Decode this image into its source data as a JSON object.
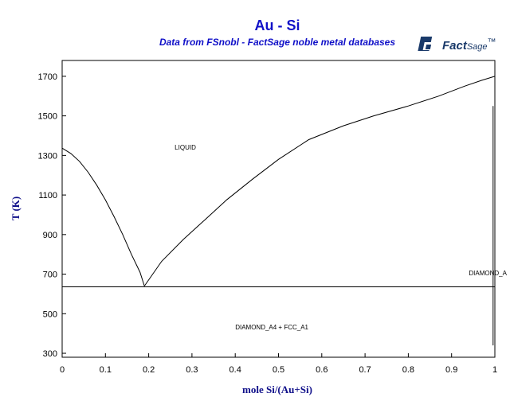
{
  "brand": {
    "logo_text": "Fact",
    "logo_suffix": "Sage",
    "logo_tm": "™",
    "logo_color": "#1a3a6a"
  },
  "chart_data": {
    "type": "line",
    "title": "Au - Si",
    "subtitle": "Data from FSnobl - FactSage noble metal databases",
    "xlabel": "mole Si/(Au+Si)",
    "ylabel": "T (K)",
    "xlim": [
      0,
      1
    ],
    "ylim": [
      280,
      1780
    ],
    "x_ticks": [
      "0",
      "0.1",
      "0.2",
      "0.3",
      "0.4",
      "0.5",
      "0.6",
      "0.7",
      "0.8",
      "0.9",
      "1"
    ],
    "x_tick_values": [
      0,
      0.1,
      0.2,
      0.3,
      0.4,
      0.5,
      0.6,
      0.7,
      0.8,
      0.9,
      1
    ],
    "y_ticks": [
      "300",
      "500",
      "700",
      "900",
      "1100",
      "1300",
      "1500",
      "1700"
    ],
    "y_tick_values": [
      300,
      500,
      700,
      900,
      1100,
      1300,
      1500,
      1700
    ],
    "grid": false,
    "colors": {
      "title": "#1010c8",
      "axis_label": "#10108a",
      "lines": "#000000"
    },
    "series": [
      {
        "x": [
          0,
          0.02,
          0.04,
          0.06,
          0.08,
          0.1,
          0.12,
          0.14,
          0.16,
          0.18,
          0.19
        ],
        "y": [
          1337,
          1310,
          1270,
          1215,
          1150,
          1075,
          990,
          900,
          800,
          710,
          640
        ]
      },
      {
        "x": [
          0.19,
          0.23,
          0.28,
          0.33,
          0.38,
          0.44,
          0.5,
          0.57,
          0.65,
          0.72,
          0.8,
          0.87,
          0.93,
          0.97,
          1.0
        ],
        "y": [
          640,
          765,
          875,
          975,
          1075,
          1180,
          1280,
          1380,
          1450,
          1500,
          1550,
          1600,
          1650,
          1680,
          1700
        ]
      },
      {
        "x": [
          0,
          1
        ],
        "y": [
          636,
          636
        ]
      },
      {
        "x": [
          0.996,
          0.996
        ],
        "y": [
          340,
          1550
        ]
      }
    ],
    "annotations": [
      {
        "text": "LIQUID",
        "x": 0.26,
        "y": 1330
      },
      {
        "text": "DIAMOND_A4 + FCC_A1",
        "x": 0.4,
        "y": 420
      },
      {
        "text": "DIAMOND_A",
        "x": 0.94,
        "y": 695
      }
    ]
  }
}
